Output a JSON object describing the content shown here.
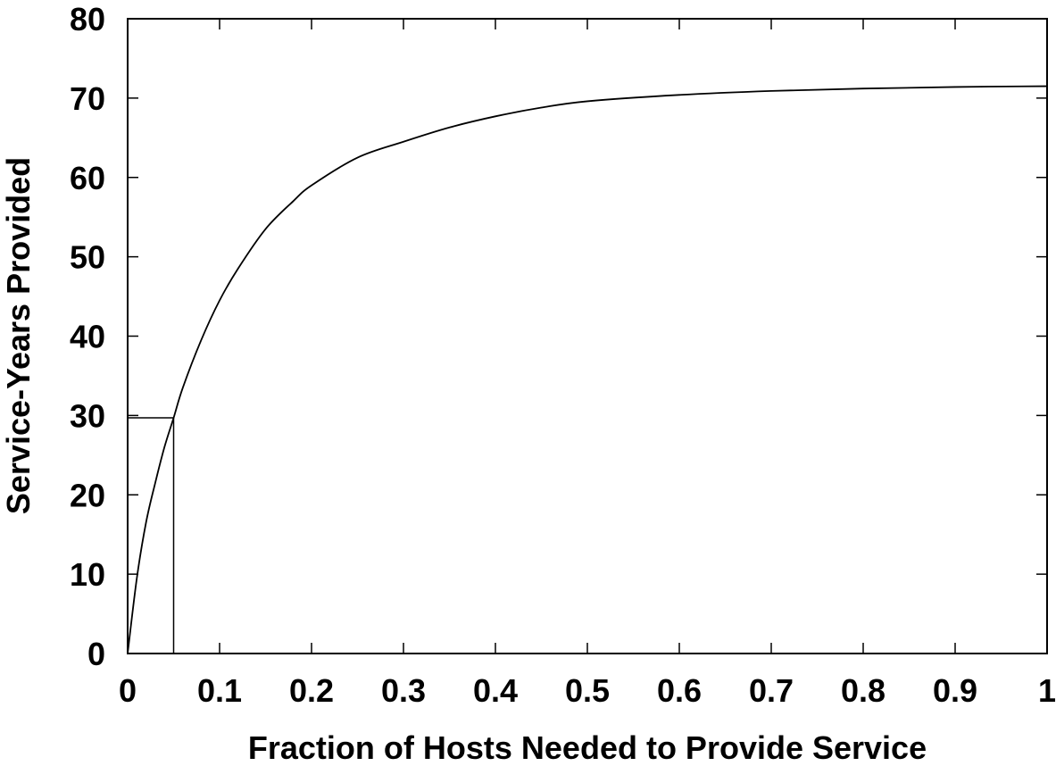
{
  "chart_data": {
    "type": "line",
    "title": "",
    "xlabel": "Fraction of Hosts Needed to Provide Service",
    "ylabel": "Service-Years Provided",
    "xlim": [
      0,
      1
    ],
    "ylim": [
      0,
      80
    ],
    "grid": false,
    "legend": "none",
    "xticks": [
      0,
      0.1,
      0.2,
      0.3,
      0.4,
      0.5,
      0.6,
      0.7,
      0.8,
      0.9,
      1
    ],
    "xtick_labels": [
      "0",
      "0.1",
      "0.2",
      "0.3",
      "0.4",
      "0.5",
      "0.6",
      "0.7",
      "0.8",
      "0.9",
      "1"
    ],
    "yticks": [
      0,
      10,
      20,
      30,
      40,
      50,
      60,
      70,
      80
    ],
    "ytick_labels": [
      "0",
      "10",
      "20",
      "30",
      "40",
      "50",
      "60",
      "70",
      "80"
    ],
    "series": [
      {
        "color": "#000000",
        "x": [
          0,
          0.01,
          0.02,
          0.03,
          0.04,
          0.05,
          0.06,
          0.08,
          0.1,
          0.12,
          0.15,
          0.18,
          0.2,
          0.25,
          0.3,
          0.35,
          0.4,
          0.45,
          0.5,
          0.6,
          0.7,
          0.8,
          0.9,
          1.0
        ],
        "y": [
          0,
          9.5,
          16.5,
          21.5,
          26,
          29.7,
          33.5,
          39.5,
          44.5,
          48.5,
          53.5,
          57,
          59,
          62.5,
          64.5,
          66.3,
          67.7,
          68.8,
          69.6,
          70.4,
          70.9,
          71.2,
          71.4,
          71.5
        ]
      }
    ],
    "annotations": [
      {
        "type": "marker-lines",
        "x": 0.05,
        "y": 29.7,
        "color": "#000000"
      }
    ]
  }
}
